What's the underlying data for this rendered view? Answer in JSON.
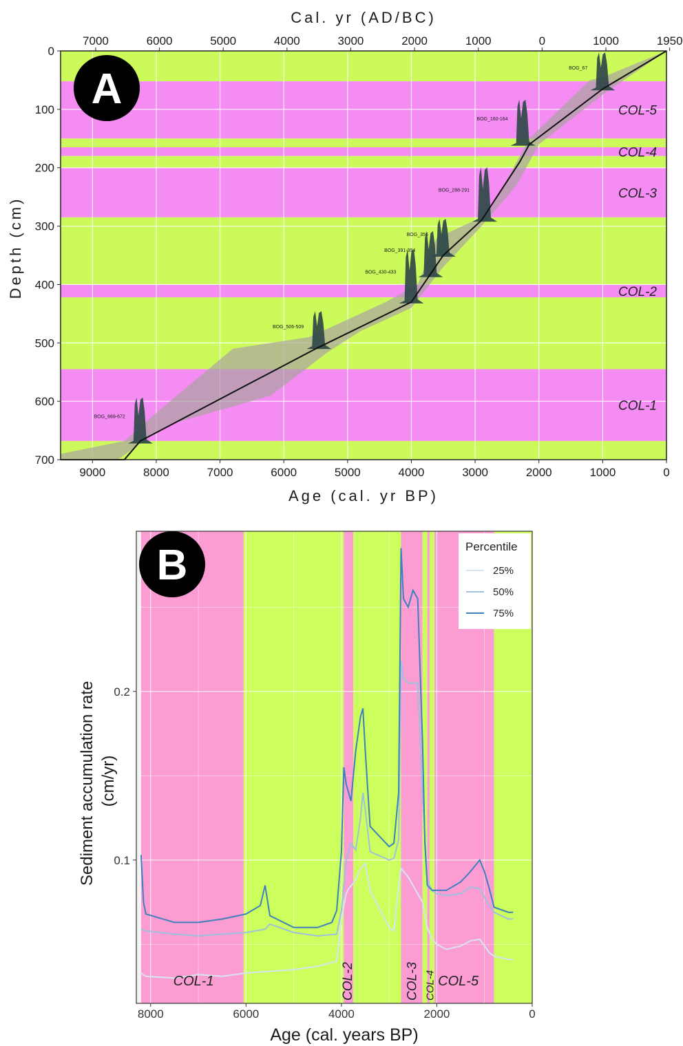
{
  "chart_data": [
    {
      "panel_label": "A",
      "type": "line",
      "title": "",
      "xlabel": "Age (cal. yr BP)",
      "x2label": "Cal. yr (AD/BC)",
      "ylabel": "Depth (cm)",
      "xlim": [
        9500,
        0
      ],
      "ylim": [
        700,
        0
      ],
      "xticks": [
        "9000",
        "8000",
        "7000",
        "6000",
        "5000",
        "4000",
        "3000",
        "2000",
        "1000",
        "0"
      ],
      "x2ticks": [
        "7000",
        "6000",
        "5000",
        "4000",
        "3000",
        "2000",
        "1000",
        "0",
        "1000",
        "1950"
      ],
      "yticks": [
        "0",
        "100",
        "200",
        "300",
        "400",
        "500",
        "600",
        "700"
      ],
      "colors": {
        "pink": "#f48cf4",
        "green": "#ccfa5a",
        "line": "#111111",
        "envelope": "#a9a2a0",
        "density": "#2f4848"
      },
      "zones": [
        {
          "label": "",
          "from": 0,
          "to": 52,
          "color": "green"
        },
        {
          "label": "COL-5",
          "from": 52,
          "to": 150,
          "color": "pink"
        },
        {
          "label": "",
          "from": 150,
          "to": 165,
          "color": "green"
        },
        {
          "label": "COL-4",
          "from": 165,
          "to": 180,
          "color": "pink"
        },
        {
          "label": "",
          "from": 180,
          "to": 200,
          "color": "green"
        },
        {
          "label": "COL-3",
          "from": 200,
          "to": 285,
          "color": "pink"
        },
        {
          "label": "",
          "from": 285,
          "to": 400,
          "color": "green"
        },
        {
          "label": "COL-2",
          "from": 400,
          "to": 422,
          "color": "pink"
        },
        {
          "label": "",
          "from": 422,
          "to": 545,
          "color": "green"
        },
        {
          "label": "COL-1",
          "from": 545,
          "to": 668,
          "color": "pink"
        },
        {
          "label": "",
          "from": 668,
          "to": 700,
          "color": "green"
        }
      ],
      "age_depth_median": [
        [
          9500,
          700
        ],
        [
          8500,
          700
        ],
        [
          8250,
          668
        ],
        [
          5500,
          510
        ],
        [
          4000,
          430
        ],
        [
          3500,
          350
        ],
        [
          2900,
          290
        ],
        [
          2300,
          190
        ],
        [
          2150,
          160
        ],
        [
          1000,
          65
        ],
        [
          0,
          0
        ]
      ],
      "age_depth_upper": [
        [
          9500,
          690
        ],
        [
          8500,
          668
        ],
        [
          8000,
          620
        ],
        [
          6800,
          510
        ],
        [
          5600,
          490
        ],
        [
          4400,
          430
        ],
        [
          3900,
          400
        ],
        [
          3600,
          320
        ],
        [
          2800,
          280
        ],
        [
          2400,
          200
        ],
        [
          2150,
          150
        ],
        [
          1200,
          50
        ],
        [
          1000,
          45
        ],
        [
          0,
          0
        ]
      ],
      "age_depth_lower": [
        [
          9500,
          700
        ],
        [
          8600,
          700
        ],
        [
          8200,
          668
        ],
        [
          7800,
          640
        ],
        [
          6200,
          590
        ],
        [
          5300,
          515
        ],
        [
          4800,
          480
        ],
        [
          4000,
          440
        ],
        [
          3500,
          370
        ],
        [
          2900,
          300
        ],
        [
          2350,
          230
        ],
        [
          2000,
          160
        ],
        [
          1000,
          75
        ],
        [
          0,
          0
        ]
      ],
      "samples": [
        {
          "label": "BOG_67",
          "age": 1000,
          "depth": 65
        },
        {
          "label": "BOG_160-164",
          "age": 2250,
          "depth": 160
        },
        {
          "label": "BOG_288-291",
          "age": 2850,
          "depth": 290
        },
        {
          "label": "BOG_356",
          "age": 3500,
          "depth": 350
        },
        {
          "label": "BOG_391-394",
          "age": 3700,
          "depth": 385
        },
        {
          "label": "BOG_430-433",
          "age": 4000,
          "depth": 430
        },
        {
          "label": "BOG_506-509",
          "age": 5450,
          "depth": 508
        },
        {
          "label": "BOG_669-672",
          "age": 8250,
          "depth": 670
        }
      ]
    },
    {
      "panel_label": "B",
      "type": "line",
      "title": "",
      "xlabel": "Age (cal. years BP)",
      "ylabel": "Sediment accumulation rate (cm/yr)",
      "xlim": [
        8300,
        0
      ],
      "ylim": [
        0.015,
        0.295
      ],
      "xticks": [
        "8000",
        "6000",
        "4000",
        "2000",
        "0"
      ],
      "yticks": [
        "0.1",
        "0.2"
      ],
      "legend_title": "Percentile",
      "legend_position": "top-right",
      "colors": {
        "pink": "#fb9cd2",
        "green": "#ccff5e",
        "p25": "#d6e5f0",
        "p50": "#9fc0dc",
        "p75": "#3d80bd"
      },
      "zones": [
        {
          "label": "COL-1",
          "from": 8200,
          "to": 6050,
          "color": "pink"
        },
        {
          "label": "",
          "from": 6050,
          "to": 3950,
          "color": "green"
        },
        {
          "label": "COL-2",
          "from": 3950,
          "to": 3750,
          "color": "pink"
        },
        {
          "label": "",
          "from": 3750,
          "to": 2750,
          "color": "green"
        },
        {
          "label": "COL-3",
          "from": 2750,
          "to": 2300,
          "color": "pink"
        },
        {
          "label": "",
          "from": 2300,
          "to": 2200,
          "color": "green"
        },
        {
          "label": "COL-4",
          "from": 2200,
          "to": 2150,
          "color": "pink"
        },
        {
          "label": "",
          "from": 2150,
          "to": 2050,
          "color": "green"
        },
        {
          "label": "COL-5",
          "from": 2050,
          "to": 800,
          "color": "pink"
        },
        {
          "label": "",
          "from": 800,
          "to": 0,
          "color": "green"
        }
      ],
      "series": [
        {
          "name": "25%",
          "x": [
            8200,
            8100,
            7500,
            7000,
            6500,
            6000,
            5500,
            5000,
            4500,
            4100,
            4000,
            3900,
            3850,
            3700,
            3600,
            3500,
            3400,
            3000,
            2900,
            2800,
            2750,
            2600,
            2500,
            2400,
            2300,
            2200,
            2100,
            2000,
            1800,
            1500,
            1300,
            1100,
            900,
            800,
            500,
            400
          ],
          "y": [
            0.033,
            0.031,
            0.03,
            0.032,
            0.031,
            0.033,
            0.034,
            0.035,
            0.037,
            0.04,
            0.065,
            0.08,
            0.083,
            0.088,
            0.095,
            0.098,
            0.082,
            0.06,
            0.058,
            0.085,
            0.095,
            0.09,
            0.085,
            0.08,
            0.075,
            0.06,
            0.053,
            0.05,
            0.047,
            0.049,
            0.052,
            0.053,
            0.045,
            0.043,
            0.041,
            0.041
          ]
        },
        {
          "name": "50%",
          "x": [
            8200,
            8100,
            7500,
            7000,
            6500,
            6000,
            5600,
            5500,
            5000,
            4500,
            4100,
            4000,
            3900,
            3800,
            3700,
            3600,
            3550,
            3500,
            3400,
            3000,
            2900,
            2800,
            2750,
            2700,
            2600,
            2500,
            2400,
            2300,
            2200,
            2100,
            2000,
            1800,
            1500,
            1300,
            1100,
            900,
            800,
            500,
            400
          ],
          "y": [
            0.059,
            0.058,
            0.056,
            0.055,
            0.056,
            0.057,
            0.059,
            0.062,
            0.057,
            0.055,
            0.056,
            0.07,
            0.1,
            0.11,
            0.106,
            0.125,
            0.14,
            0.13,
            0.105,
            0.1,
            0.101,
            0.112,
            0.218,
            0.208,
            0.205,
            0.205,
            0.205,
            0.14,
            0.088,
            0.082,
            0.08,
            0.079,
            0.08,
            0.084,
            0.083,
            0.073,
            0.069,
            0.065,
            0.065
          ]
        },
        {
          "name": "75%",
          "x": [
            8200,
            8150,
            8100,
            7500,
            7000,
            6500,
            6000,
            5700,
            5600,
            5500,
            5000,
            4500,
            4200,
            4100,
            4000,
            3950,
            3900,
            3800,
            3700,
            3600,
            3550,
            3500,
            3400,
            3000,
            2900,
            2800,
            2750,
            2700,
            2600,
            2500,
            2400,
            2300,
            2250,
            2200,
            2100,
            2000,
            1800,
            1500,
            1300,
            1100,
            1000,
            900,
            800,
            500,
            400
          ],
          "y": [
            0.103,
            0.075,
            0.068,
            0.063,
            0.063,
            0.065,
            0.068,
            0.073,
            0.085,
            0.067,
            0.06,
            0.06,
            0.063,
            0.07,
            0.105,
            0.155,
            0.145,
            0.135,
            0.165,
            0.185,
            0.19,
            0.165,
            0.12,
            0.108,
            0.11,
            0.14,
            0.285,
            0.255,
            0.25,
            0.26,
            0.255,
            0.17,
            0.11,
            0.085,
            0.082,
            0.082,
            0.082,
            0.087,
            0.093,
            0.1,
            0.093,
            0.083,
            0.072,
            0.069,
            0.069
          ]
        }
      ]
    }
  ]
}
